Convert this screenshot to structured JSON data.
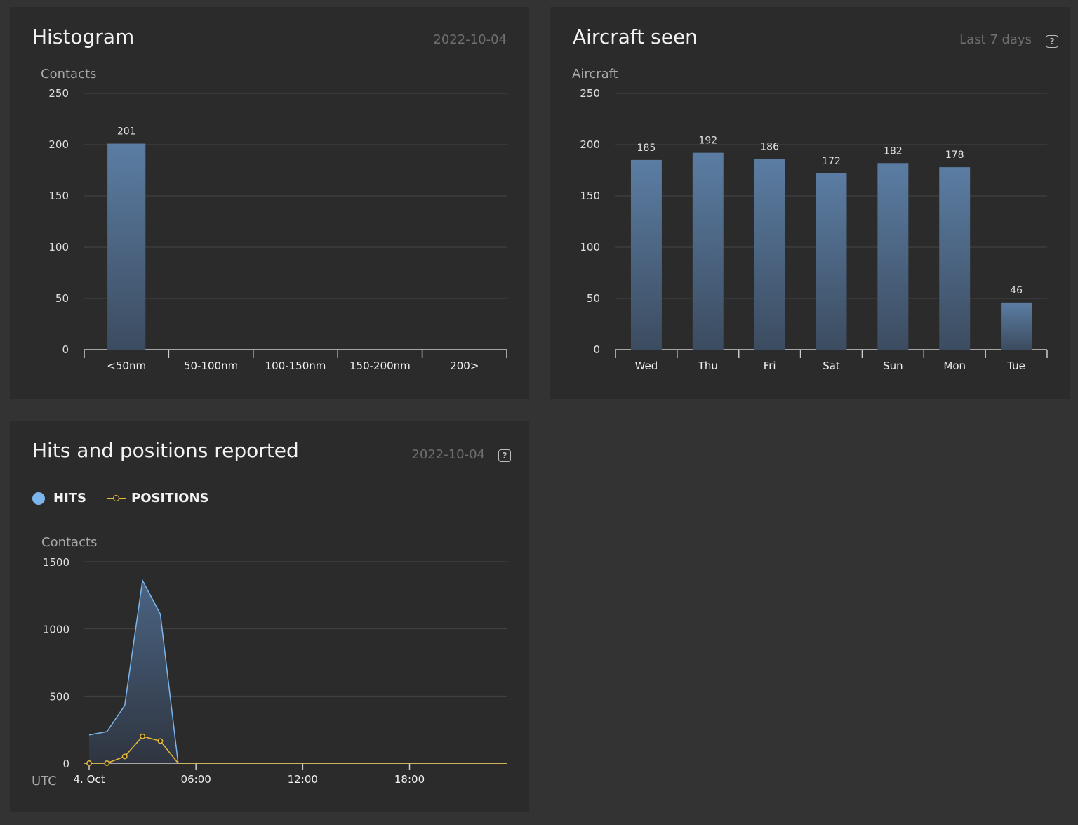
{
  "panels": {
    "histogram": {
      "title": "Histogram",
      "date": "2022-10-04"
    },
    "aircraft": {
      "title": "Aircraft seen",
      "range": "Last 7 days",
      "help": "?"
    },
    "hits": {
      "title": "Hits and positions reported",
      "date": "2022-10-04",
      "help": "?",
      "legend": {
        "hits": "HITS",
        "positions": "POSITIONS"
      }
    }
  },
  "colors": {
    "bar": "#5a7a9e",
    "hits": "#7cb5ec",
    "positions": "#e6b93a",
    "grid": "#444444",
    "axis": "#cccccc"
  },
  "chart_data": [
    {
      "id": "histogram",
      "type": "bar",
      "ylabel": "Contacts",
      "ylim": [
        0,
        250
      ],
      "yticks": [
        0,
        50,
        100,
        150,
        200,
        250
      ],
      "categories": [
        "<50nm",
        "50-100nm",
        "100-150nm",
        "150-200nm",
        "200>"
      ],
      "values": [
        201,
        0,
        0,
        0,
        0
      ],
      "data_labels": [
        "201",
        "",
        "",
        "",
        ""
      ],
      "grid": true
    },
    {
      "id": "aircraft",
      "type": "bar",
      "ylabel": "Aircraft",
      "ylim": [
        0,
        250
      ],
      "yticks": [
        0,
        50,
        100,
        150,
        200,
        250
      ],
      "categories": [
        "Wed",
        "Thu",
        "Fri",
        "Sat",
        "Sun",
        "Mon",
        "Tue"
      ],
      "values": [
        185,
        192,
        186,
        172,
        182,
        178,
        46
      ],
      "data_labels": [
        "185",
        "192",
        "186",
        "172",
        "182",
        "178",
        "46"
      ],
      "grid": true
    },
    {
      "id": "hits",
      "type": "area",
      "ylabel": "Contacts",
      "xlabel": "UTC",
      "ylim": [
        0,
        1500
      ],
      "yticks": [
        0,
        500,
        1000,
        1500
      ],
      "xlim_hours": [
        0,
        23.5
      ],
      "xticks": [
        {
          "hour": 0,
          "label": "4. Oct"
        },
        {
          "hour": 6,
          "label": "06:00"
        },
        {
          "hour": 12,
          "label": "12:00"
        },
        {
          "hour": 18,
          "label": "18:00"
        }
      ],
      "series": [
        {
          "name": "HITS",
          "type": "area",
          "points": [
            [
              0,
              210
            ],
            [
              1,
              235
            ],
            [
              2,
              430
            ],
            [
              3,
              1360
            ],
            [
              4,
              1110
            ],
            [
              5,
              0
            ],
            [
              6,
              0
            ],
            [
              7,
              0
            ],
            [
              8,
              0
            ],
            [
              9,
              0
            ],
            [
              10,
              0
            ],
            [
              11,
              0
            ],
            [
              12,
              0
            ],
            [
              13,
              0
            ],
            [
              14,
              0
            ],
            [
              15,
              0
            ],
            [
              16,
              0
            ],
            [
              17,
              0
            ],
            [
              18,
              0
            ],
            [
              19,
              0
            ],
            [
              20,
              0
            ],
            [
              21,
              0
            ],
            [
              22,
              0
            ],
            [
              23,
              0
            ],
            [
              23.5,
              0
            ]
          ]
        },
        {
          "name": "POSITIONS",
          "type": "line",
          "points": [
            [
              0,
              0
            ],
            [
              1,
              0
            ],
            [
              2,
              50
            ],
            [
              3,
              200
            ],
            [
              4,
              165
            ],
            [
              5,
              0
            ],
            [
              6,
              0
            ],
            [
              7,
              0
            ],
            [
              8,
              0
            ],
            [
              9,
              0
            ],
            [
              10,
              0
            ],
            [
              11,
              0
            ],
            [
              12,
              0
            ],
            [
              13,
              0
            ],
            [
              14,
              0
            ],
            [
              15,
              0
            ],
            [
              16,
              0
            ],
            [
              17,
              0
            ],
            [
              18,
              0
            ],
            [
              19,
              0
            ],
            [
              20,
              0
            ],
            [
              21,
              0
            ],
            [
              22,
              0
            ],
            [
              23,
              0
            ],
            [
              23.5,
              0
            ]
          ],
          "markers_until_hour": 5
        }
      ],
      "grid": true
    }
  ]
}
